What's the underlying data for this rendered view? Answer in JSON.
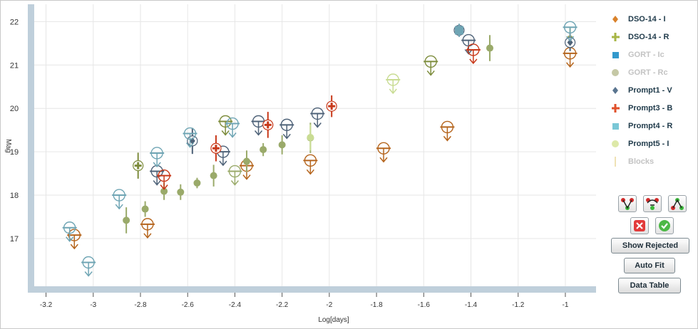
{
  "chart_data": {
    "type": "scatter",
    "title": "",
    "xlabel": "Log[days]",
    "ylabel": "Mag",
    "xlim": [
      -3.25,
      -0.87
    ],
    "ylim": [
      22.4,
      15.9
    ],
    "y_inverted": true,
    "x_ticks": [
      -3.2,
      -3,
      -2.8,
      -2.6,
      -2.4,
      -2.2,
      -2,
      -1.8,
      -1.6,
      -1.4,
      -1.2,
      -1
    ],
    "x_tick_labels": [
      "-3.2",
      "-3",
      "-2.8",
      "-2.6",
      "-2.4",
      "-2.2",
      "-2",
      "-1.8",
      "-1.6",
      "-1.4",
      "-1.2",
      "-1"
    ],
    "y_ticks": [
      17,
      18,
      19,
      20,
      21,
      22
    ],
    "y_tick_labels": [
      "17",
      "18",
      "19",
      "20",
      "21",
      "22"
    ],
    "grid": true,
    "legend_position": "right",
    "series": [
      {
        "name": "DSO-14 - I",
        "marker": "diamond",
        "color": "#b5651d",
        "points": [
          {
            "x": -3.08,
            "y": 17.08,
            "limit": true
          },
          {
            "x": -2.77,
            "y": 17.33,
            "limit": true
          },
          {
            "x": -2.35,
            "y": 18.68,
            "limit": true
          },
          {
            "x": -2.08,
            "y": 18.8,
            "limit": true
          },
          {
            "x": -1.77,
            "y": 19.08,
            "limit": true
          },
          {
            "x": -1.5,
            "y": 19.57,
            "limit": true
          },
          {
            "x": -0.98,
            "y": 21.27,
            "limit": true
          }
        ]
      },
      {
        "name": "DSO-14 - R",
        "marker": "plus",
        "color": "#7d8c3c",
        "points": [
          {
            "x": -2.81,
            "y": 18.68,
            "err": 0.3,
            "limit": false
          },
          {
            "x": -2.44,
            "y": 19.7,
            "limit": true
          },
          {
            "x": -1.57,
            "y": 21.08,
            "limit": true
          }
        ]
      },
      {
        "name": "GORT - Ic",
        "marker": "square",
        "color": "#3399cc",
        "hidden": true,
        "points": []
      },
      {
        "name": "GORT - Rc",
        "marker": "circle",
        "color": "#9aaa6a",
        "points": [
          {
            "x": -2.86,
            "y": 17.42,
            "err": 0.3
          },
          {
            "x": -2.78,
            "y": 17.68,
            "err": 0.18
          },
          {
            "x": -2.7,
            "y": 18.09,
            "err": 0.2
          },
          {
            "x": -2.63,
            "y": 18.07,
            "err": 0.18
          },
          {
            "x": -2.56,
            "y": 18.28,
            "err": 0.12
          },
          {
            "x": -2.49,
            "y": 18.45,
            "err": 0.25
          },
          {
            "x": -2.35,
            "y": 18.78,
            "err": 0.25
          },
          {
            "x": -2.28,
            "y": 19.05,
            "err": 0.15
          },
          {
            "x": -2.2,
            "y": 19.16,
            "err": 0.22
          },
          {
            "x": -2.08,
            "y": 19.32,
            "err": 0.35
          },
          {
            "x": -1.32,
            "y": 21.39,
            "err": 0.3
          },
          {
            "x": -0.98,
            "y": 21.6,
            "err": 0.25
          }
        ],
        "limits": [
          {
            "x": -2.4,
            "y": 18.55,
            "limit": true
          }
        ]
      },
      {
        "name": "Prompt1 - V",
        "marker": "diamond",
        "color": "#4e6278",
        "points": [
          {
            "x": -2.58,
            "y": 19.25,
            "err": 0.3
          },
          {
            "x": -1.45,
            "y": 21.8,
            "err": 0.15
          },
          {
            "x": -0.98,
            "y": 21.52,
            "err": 0.2
          }
        ],
        "limits": [
          {
            "x": -2.73,
            "y": 18.55
          },
          {
            "x": -2.45,
            "y": 19.0
          },
          {
            "x": -2.3,
            "y": 19.7
          },
          {
            "x": -2.18,
            "y": 19.62
          },
          {
            "x": -2.05,
            "y": 19.88
          },
          {
            "x": -1.41,
            "y": 21.57
          }
        ]
      },
      {
        "name": "Prompt3 - B",
        "marker": "plus",
        "color": "#c8391a",
        "points": [
          {
            "x": -2.48,
            "y": 19.08,
            "err": 0.3
          },
          {
            "x": -2.26,
            "y": 19.62,
            "err": 0.3
          },
          {
            "x": -1.99,
            "y": 20.05,
            "err": 0.25
          }
        ],
        "limits": [
          {
            "x": -2.7,
            "y": 18.45
          },
          {
            "x": -1.39,
            "y": 21.35
          }
        ]
      },
      {
        "name": "Prompt4 - R",
        "marker": "square",
        "color": "#6fa5b4",
        "points": [
          {
            "x": -1.45,
            "y": 21.8,
            "err": 0.15
          }
        ],
        "limits": [
          {
            "x": -3.02,
            "y": 16.45
          },
          {
            "x": -3.1,
            "y": 17.25
          },
          {
            "x": -2.89,
            "y": 18.0
          },
          {
            "x": -2.73,
            "y": 18.97
          },
          {
            "x": -2.59,
            "y": 19.42
          },
          {
            "x": -2.41,
            "y": 19.65
          },
          {
            "x": -0.98,
            "y": 21.87
          }
        ]
      },
      {
        "name": "Prompt5 - I",
        "marker": "circle",
        "color": "#c9dc93",
        "points": [
          {
            "x": -2.08,
            "y": 19.33,
            "err": 0.3
          }
        ],
        "limits": [
          {
            "x": -1.73,
            "y": 20.66
          }
        ]
      },
      {
        "name": "Blocks",
        "marker": "line",
        "color": "#e8d7a0",
        "hidden": true,
        "points": []
      }
    ]
  },
  "controls": {
    "show_rejected": "Show Rejected",
    "auto_fit": "Auto Fit",
    "data_table": "Data Table"
  }
}
